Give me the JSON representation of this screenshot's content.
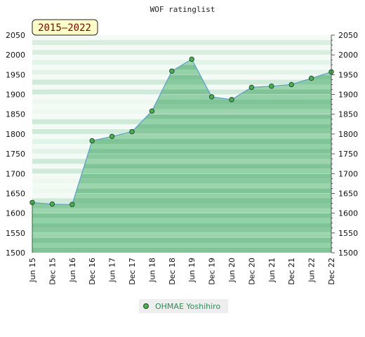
{
  "chart_data": {
    "type": "area",
    "title": "WOF ratinglist",
    "range_label": "2015–2022",
    "categories": [
      "Jun 15",
      "Dec 15",
      "Jun 16",
      "Dec 16",
      "Jun 17",
      "Dec 17",
      "Jun 18",
      "Dec 18",
      "Jun 19",
      "Dec 19",
      "Jun 20",
      "Dec 20",
      "Jun 21",
      "Dec 21",
      "Jun 22",
      "Dec 22"
    ],
    "series": [
      {
        "name": "OHMAE Yoshihiro",
        "values": [
          1627,
          1623,
          1622,
          1783,
          1794,
          1806,
          1858,
          1959,
          1989,
          1894,
          1887,
          1918,
          1921,
          1925,
          1941,
          1957
        ]
      }
    ],
    "yticks": [
      1500,
      1550,
      1600,
      1650,
      1700,
      1750,
      1800,
      1850,
      1900,
      1950,
      2000,
      2050
    ],
    "ylim": [
      1500,
      2050
    ],
    "grid": true,
    "axes": "left-and-right",
    "legend_position": "bottom-center",
    "colors": {
      "area": "#8fcd9f",
      "line": "#5aa0cc",
      "marker": "#4caf50",
      "marker_edge": "#1e4e2a",
      "label_bg": "#ffffc8"
    }
  }
}
